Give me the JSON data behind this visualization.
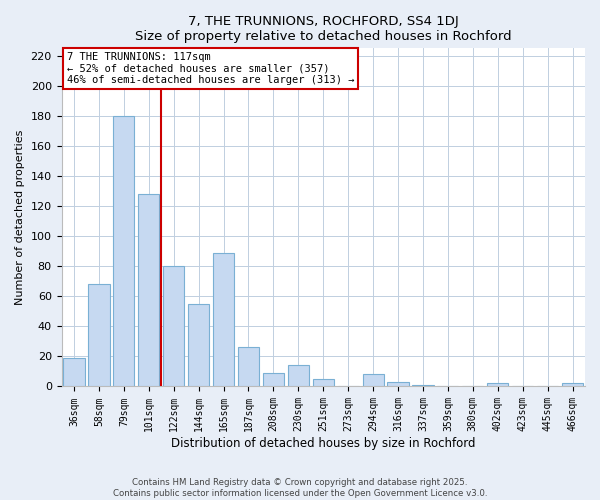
{
  "title": "7, THE TRUNNIONS, ROCHFORD, SS4 1DJ",
  "subtitle": "Size of property relative to detached houses in Rochford",
  "xlabel": "Distribution of detached houses by size in Rochford",
  "ylabel": "Number of detached properties",
  "bar_labels": [
    "36sqm",
    "58sqm",
    "79sqm",
    "101sqm",
    "122sqm",
    "144sqm",
    "165sqm",
    "187sqm",
    "208sqm",
    "230sqm",
    "251sqm",
    "273sqm",
    "294sqm",
    "316sqm",
    "337sqm",
    "359sqm",
    "380sqm",
    "402sqm",
    "423sqm",
    "445sqm",
    "466sqm"
  ],
  "bar_values": [
    19,
    68,
    180,
    128,
    80,
    55,
    89,
    26,
    9,
    14,
    5,
    0,
    8,
    3,
    1,
    0,
    0,
    2,
    0,
    0,
    2
  ],
  "bar_color": "#c6d9f1",
  "bar_edge_color": "#7ab0d4",
  "vline_color": "#cc0000",
  "annotation_line1": "7 THE TRUNNIONS: 117sqm",
  "annotation_line2": "← 52% of detached houses are smaller (357)",
  "annotation_line3": "46% of semi-detached houses are larger (313) →",
  "annotation_box_color": "white",
  "annotation_box_edge_color": "#cc0000",
  "ylim": [
    0,
    225
  ],
  "yticks": [
    0,
    20,
    40,
    60,
    80,
    100,
    120,
    140,
    160,
    180,
    200,
    220
  ],
  "background_color": "#e8eef7",
  "plot_area_color": "white",
  "grid_color": "#c0cfe0",
  "footer_line1": "Contains HM Land Registry data © Crown copyright and database right 2025.",
  "footer_line2": "Contains public sector information licensed under the Open Government Licence v3.0."
}
